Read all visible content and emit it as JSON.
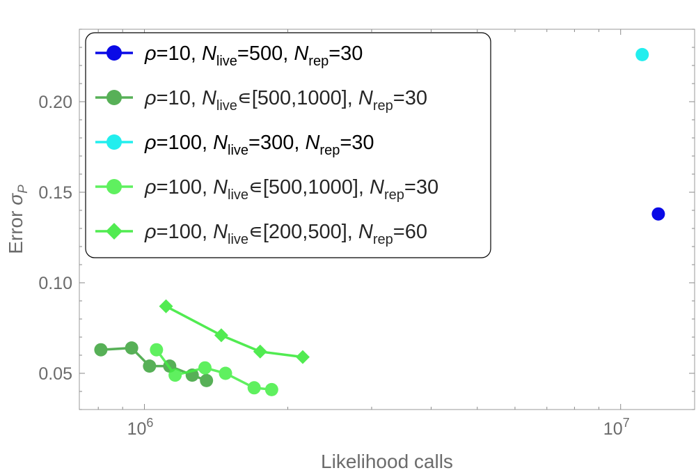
{
  "chart_data": {
    "type": "scatter",
    "title": "",
    "xlabel": "Likelihood calls",
    "ylabel_prefix": "Error ",
    "ylabel_symbol": "σ",
    "ylabel_sub": "P",
    "x_scale": "log",
    "xlim": [
      730000,
      14300000
    ],
    "ylim": [
      0.03,
      0.24
    ],
    "x_major_ticks": [
      {
        "value": 1000000,
        "base": "10",
        "exp": "6"
      },
      {
        "value": 10000000,
        "base": "10",
        "exp": "7"
      }
    ],
    "y_ticks": [
      0.05,
      0.1,
      0.15,
      0.2
    ],
    "y_tick_labels": [
      "0.05",
      "0.10",
      "0.15",
      "0.20"
    ],
    "legend_position": "top-left",
    "series": [
      {
        "legend": {
          "rho": "ρ=10, ",
          "nlive_prefix": "N",
          "nlive_sub": "live",
          "nlive_rest": "=500, ",
          "nrep_prefix": "N",
          "nrep_sub": "rep",
          "nrep_rest": "=30"
        },
        "color": "#0a0ae6",
        "marker": "circle",
        "connected": false,
        "points": [
          {
            "x": 12000000,
            "y": 0.138
          }
        ]
      },
      {
        "legend": {
          "rho": "ρ=10, ",
          "nlive_prefix": "N",
          "nlive_sub": "live",
          "nlive_rest": "∊[500,1000], ",
          "nrep_prefix": "N",
          "nrep_sub": "rep",
          "nrep_rest": "=30"
        },
        "color": "#3aa33a",
        "marker": "circle",
        "connected": true,
        "points": [
          {
            "x": 810000,
            "y": 0.063
          },
          {
            "x": 940000,
            "y": 0.064
          },
          {
            "x": 1025000,
            "y": 0.054
          },
          {
            "x": 1130000,
            "y": 0.054
          },
          {
            "x": 1260000,
            "y": 0.049
          },
          {
            "x": 1350000,
            "y": 0.046
          }
        ]
      },
      {
        "legend": {
          "rho": "ρ=100, ",
          "nlive_prefix": "N",
          "nlive_sub": "live",
          "nlive_rest": "=300, ",
          "nrep_prefix": "N",
          "nrep_sub": "rep",
          "nrep_rest": "=30"
        },
        "color": "#22eeee",
        "marker": "circle",
        "connected": false,
        "points": [
          {
            "x": 11100000,
            "y": 0.226
          }
        ]
      },
      {
        "legend": {
          "rho": "ρ=100, ",
          "nlive_prefix": "N",
          "nlive_sub": "live",
          "nlive_rest": "∊[500,1000], ",
          "nrep_prefix": "N",
          "nrep_sub": "rep",
          "nrep_rest": "=30"
        },
        "color": "#44ee44",
        "marker": "circle",
        "connected": true,
        "points": [
          {
            "x": 1060000,
            "y": 0.063
          },
          {
            "x": 1160000,
            "y": 0.049
          },
          {
            "x": 1340000,
            "y": 0.053
          },
          {
            "x": 1480000,
            "y": 0.05
          },
          {
            "x": 1700000,
            "y": 0.042
          },
          {
            "x": 1850000,
            "y": 0.041
          }
        ]
      },
      {
        "legend": {
          "rho": "ρ=100, ",
          "nlive_prefix": "N",
          "nlive_sub": "live",
          "nlive_rest": "∊[200,500], ",
          "nrep_prefix": "N",
          "nrep_sub": "rep",
          "nrep_rest": "=60"
        },
        "color": "#33e833",
        "marker": "diamond",
        "connected": true,
        "points": [
          {
            "x": 1110000,
            "y": 0.087
          },
          {
            "x": 1450000,
            "y": 0.071
          },
          {
            "x": 1750000,
            "y": 0.062
          },
          {
            "x": 2150000,
            "y": 0.059
          }
        ]
      }
    ]
  }
}
